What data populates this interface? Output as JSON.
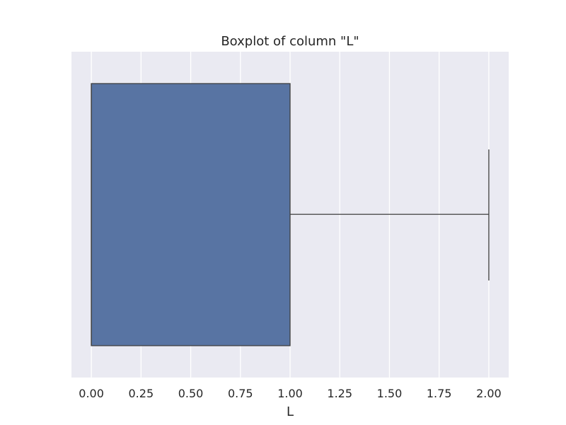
{
  "chart_data": {
    "type": "boxplot",
    "title": "Boxplot of column \"L\"",
    "xlabel": "L",
    "ylabel": "",
    "orientation": "horizontal",
    "xlim": [
      -0.1,
      2.1
    ],
    "xticks": [
      "0.00",
      "0.25",
      "0.50",
      "0.75",
      "1.00",
      "1.25",
      "1.50",
      "1.75",
      "2.00"
    ],
    "xtick_values": [
      0,
      0.25,
      0.5,
      0.75,
      1.0,
      1.25,
      1.5,
      1.75,
      2.0
    ],
    "grid": true,
    "box": {
      "whisker_low": 0,
      "q1": 0,
      "median": 0,
      "q3": 1,
      "whisker_high": 2
    },
    "colors": {
      "box_fill": "#5874a3",
      "box_edge": "#3f3f3f",
      "background": "#eaeaf2",
      "grid": "#ffffff",
      "text": "#262626"
    }
  }
}
